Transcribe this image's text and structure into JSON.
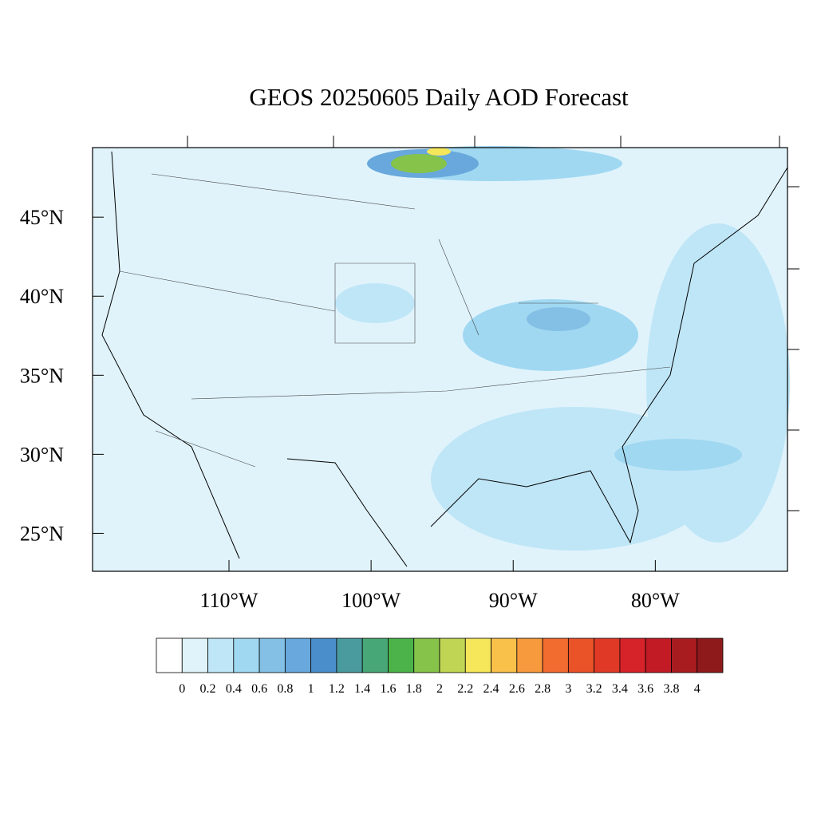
{
  "title": "GEOS 20250605 Daily AOD Forecast",
  "map": {
    "xlim": [
      -119.6,
      -70.7
    ],
    "ylim": [
      22.6,
      49.4
    ],
    "xticks": [
      {
        "value": -110,
        "label": "110°W"
      },
      {
        "value": -100,
        "label": "100°W"
      },
      {
        "value": -90,
        "label": "90°W"
      },
      {
        "value": -80,
        "label": "80°W"
      }
    ],
    "yticks": [
      {
        "value": 45,
        "label": "45°N"
      },
      {
        "value": 40,
        "label": "40°N"
      },
      {
        "value": 35,
        "label": "35°N"
      },
      {
        "value": 30,
        "label": "30°N"
      },
      {
        "value": 25,
        "label": "25°N"
      }
    ]
  },
  "colorbar": {
    "levels": [
      0,
      0.2,
      0.4,
      0.6,
      0.8,
      1,
      1.2,
      1.4,
      1.6,
      1.8,
      2,
      2.2,
      2.4,
      2.6,
      2.8,
      3,
      3.2,
      3.4,
      3.6,
      3.8,
      4
    ],
    "colors": [
      "#ffffff",
      "#e0f3fb",
      "#bfe6f7",
      "#a0d8f2",
      "#84c0e6",
      "#68a8dc",
      "#4a8ecb",
      "#4a9b9e",
      "#48a776",
      "#4bb34a",
      "#86c34a",
      "#c1d555",
      "#f6e65a",
      "#f9c04a",
      "#f79a3d",
      "#f26b2f",
      "#ea5228",
      "#e03a27",
      "#d62229",
      "#c21b26",
      "#a81c20",
      "#8e1a1b"
    ]
  }
}
